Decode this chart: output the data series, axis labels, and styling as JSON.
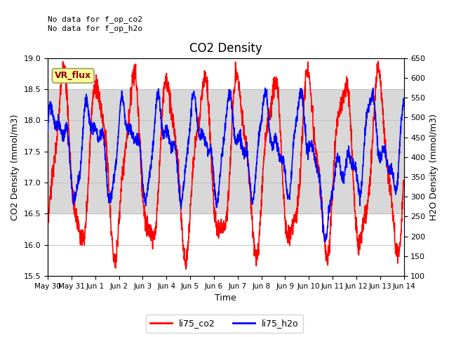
{
  "title": "CO2 Density",
  "xlabel": "Time",
  "ylabel_left": "CO2 Density (mmol/m3)",
  "ylabel_right": "H2O Density (mmol/m3)",
  "top_text_line1": "No data for f_op_co2",
  "top_text_line2": "No data for f_op_h2o",
  "legend_label1": "li75_co2",
  "legend_label2": "li75_h2o",
  "vr_flux_label": "VR_flux",
  "ylim_left": [
    15.5,
    19.0
  ],
  "ylim_right": [
    100,
    650
  ],
  "yticks_left": [
    15.5,
    16.0,
    16.5,
    17.0,
    17.5,
    18.0,
    18.5,
    19.0
  ],
  "yticks_right": [
    100,
    150,
    200,
    250,
    300,
    350,
    400,
    450,
    500,
    550,
    600,
    650
  ],
  "co2_color": "#FF0000",
  "h2o_color": "#0000FF",
  "shaded_band": [
    16.5,
    18.5
  ],
  "shaded_color": "#d8d8d8",
  "background_color": "#ffffff",
  "grid_color": "#bbbbbb",
  "vr_flux_bg": "#FFFF99",
  "vr_flux_border": "#999966",
  "title_fontsize": 12,
  "label_fontsize": 9,
  "tick_fontsize": 8,
  "linewidth": 1.2
}
